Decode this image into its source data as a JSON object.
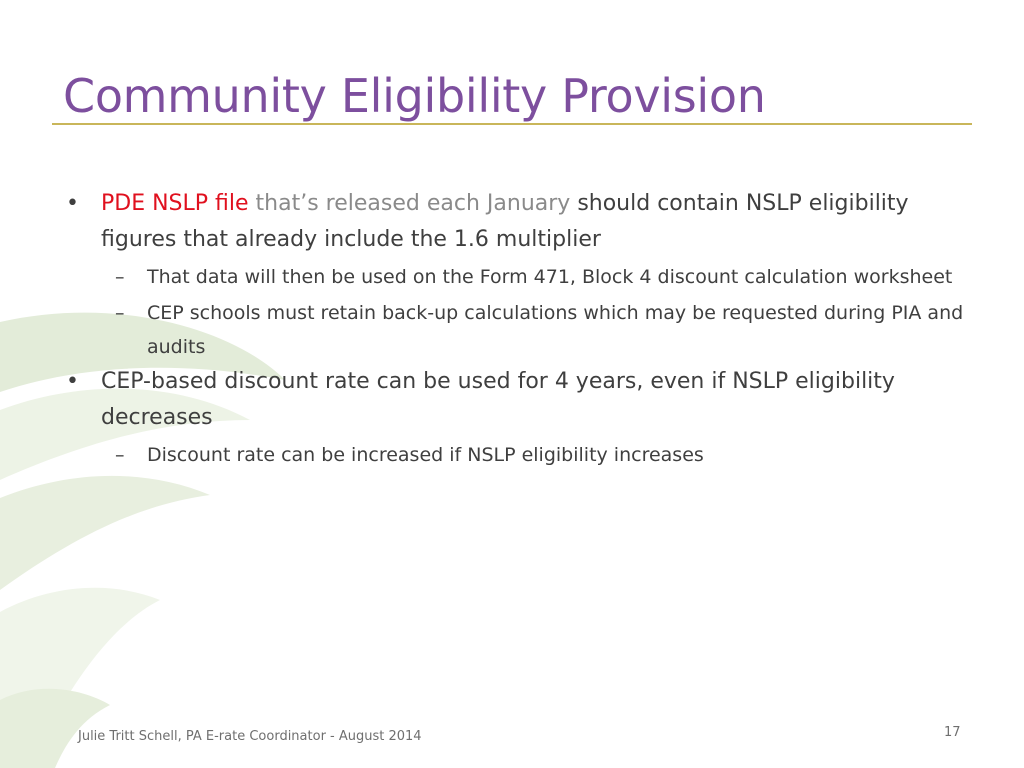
{
  "slide": {
    "title": "Community Eligibility Provision",
    "bullets": [
      {
        "bullet": "•",
        "segments": [
          {
            "text": "PDE NSLP file",
            "color": "#e0101e"
          },
          {
            "text": "that’s released each January",
            "color": "#8a8a8a"
          },
          {
            "text": "should contain NSLP eligibility figures that already include the 1.6 multiplier",
            "color": "#3f3f3f"
          }
        ],
        "subbullets": [
          {
            "bullet": "–",
            "text": "That data will then be used on the Form 471, Block 4 discount calculation worksheet"
          },
          {
            "bullet": "–",
            "text": "CEP schools must retain back-up calculations which may be requested during PIA and audits"
          }
        ]
      },
      {
        "bullet": "•",
        "text": "CEP-based discount rate can be used for 4 years, even if NSLP eligibility decreases",
        "subbullets": [
          {
            "bullet": "–",
            "text": "Discount rate can be increased if NSLP eligibility increases"
          }
        ]
      }
    ],
    "footer": "Julie Tritt Schell, PA E-rate Coordinator - August 2014",
    "page_number": "17"
  },
  "colors": {
    "title": "#7d4f9e",
    "rule": "#c9b65a",
    "body_text": "#3f3f3f",
    "highlight_red": "#e0101e",
    "muted_gray": "#8a8a8a",
    "swoosh_green": "#d9e6cd"
  }
}
